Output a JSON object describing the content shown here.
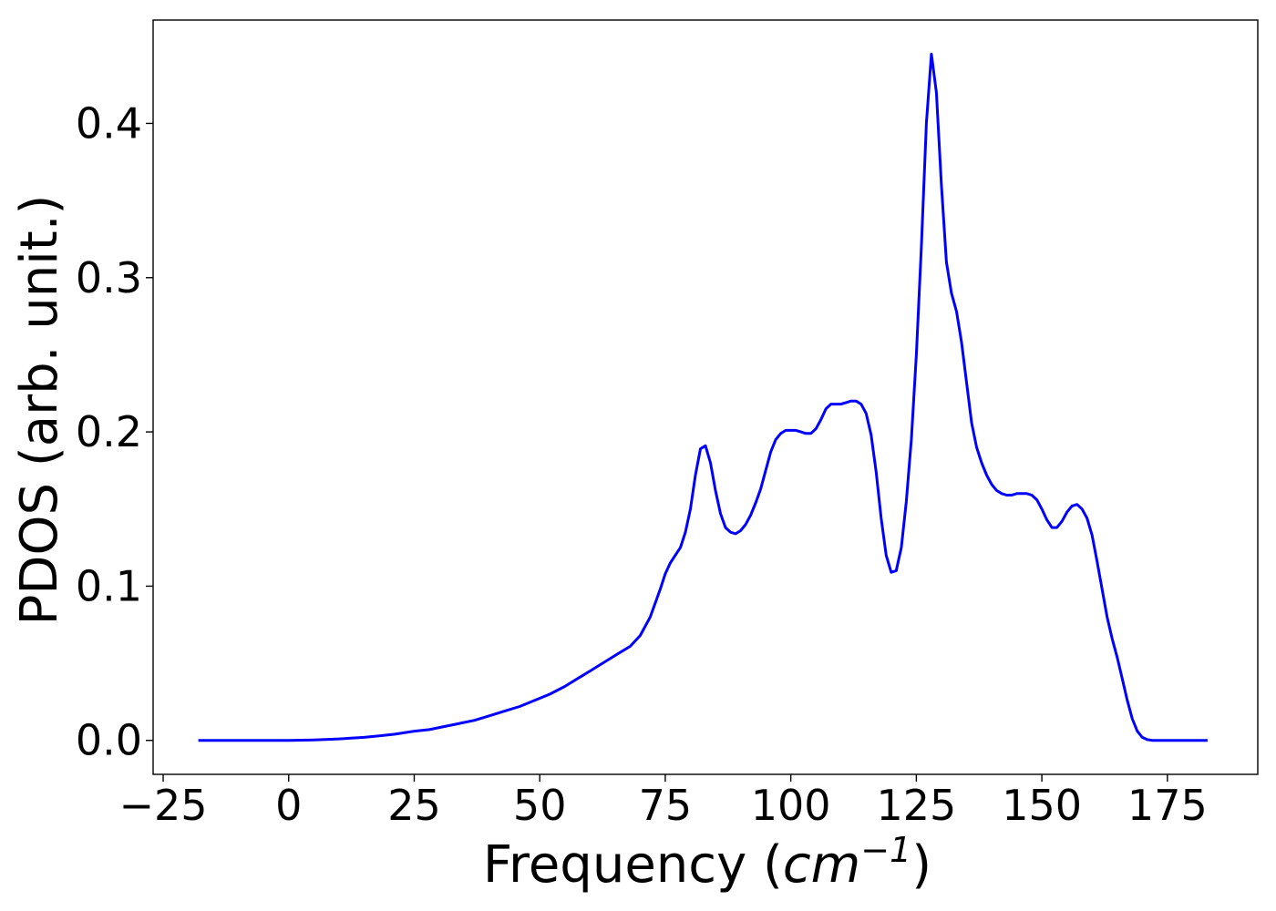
{
  "chart_data": {
    "type": "line",
    "title": "",
    "xlabel_prefix": "Frequency (",
    "xlabel_var": "cm",
    "xlabel_sup": "−1",
    "xlabel_suffix": ")",
    "ylabel": "PDOS (arb. unit.)",
    "xlim": [
      -27,
      193
    ],
    "ylim": [
      -0.022,
      0.467
    ],
    "xticks": [
      -25,
      0,
      25,
      50,
      75,
      100,
      125,
      150,
      175
    ],
    "xtick_labels": [
      "−25",
      "0",
      "25",
      "50",
      "75",
      "100",
      "125",
      "150",
      "175"
    ],
    "yticks": [
      0.0,
      0.1,
      0.2,
      0.3,
      0.4
    ],
    "ytick_labels": [
      "0.0",
      "0.1",
      "0.2",
      "0.3",
      "0.4"
    ],
    "grid": false,
    "line_color": "#0000ff",
    "series": [
      {
        "x": [
          -18,
          -10,
          0,
          5,
          10,
          15,
          18,
          21,
          25,
          28,
          31,
          34,
          37,
          40,
          43,
          46,
          49,
          52,
          55,
          58,
          60,
          63,
          66,
          68,
          70,
          72,
          74,
          75,
          76,
          77,
          78,
          79,
          80,
          81,
          82,
          83,
          84,
          85,
          86,
          87,
          88,
          89,
          90,
          91,
          92,
          93,
          94,
          95,
          96,
          97,
          98,
          99,
          100,
          101,
          102,
          103,
          104,
          105,
          106,
          107,
          108,
          109,
          110,
          111,
          112,
          113,
          114,
          115,
          116,
          117,
          118,
          119,
          120,
          121,
          122,
          123,
          124,
          125,
          126,
          127,
          128,
          129,
          130,
          131,
          132,
          133,
          134,
          135,
          136,
          137,
          138,
          139,
          140,
          141,
          142,
          143,
          144,
          145,
          146,
          147,
          148,
          149,
          150,
          151,
          152,
          153,
          154,
          155,
          156,
          157,
          158,
          159,
          160,
          161,
          162,
          163,
          164,
          165,
          166,
          167,
          168,
          169,
          170,
          171,
          172,
          175,
          180,
          183
        ],
        "y": [
          0.0,
          0.0,
          0.0,
          0.0003,
          0.001,
          0.002,
          0.003,
          0.004,
          0.006,
          0.007,
          0.009,
          0.011,
          0.013,
          0.016,
          0.019,
          0.022,
          0.026,
          0.03,
          0.035,
          0.041,
          0.045,
          0.051,
          0.057,
          0.061,
          0.068,
          0.08,
          0.098,
          0.108,
          0.115,
          0.12,
          0.125,
          0.135,
          0.15,
          0.172,
          0.189,
          0.191,
          0.18,
          0.162,
          0.147,
          0.138,
          0.135,
          0.134,
          0.136,
          0.14,
          0.146,
          0.154,
          0.163,
          0.175,
          0.187,
          0.195,
          0.199,
          0.201,
          0.201,
          0.201,
          0.2,
          0.199,
          0.199,
          0.202,
          0.208,
          0.215,
          0.218,
          0.218,
          0.218,
          0.219,
          0.22,
          0.22,
          0.218,
          0.212,
          0.198,
          0.174,
          0.144,
          0.12,
          0.109,
          0.11,
          0.125,
          0.155,
          0.195,
          0.25,
          0.32,
          0.4,
          0.445,
          0.42,
          0.36,
          0.31,
          0.29,
          0.278,
          0.258,
          0.232,
          0.206,
          0.19,
          0.18,
          0.172,
          0.166,
          0.162,
          0.16,
          0.159,
          0.159,
          0.16,
          0.16,
          0.16,
          0.159,
          0.156,
          0.15,
          0.143,
          0.138,
          0.138,
          0.142,
          0.148,
          0.152,
          0.153,
          0.15,
          0.144,
          0.133,
          0.116,
          0.098,
          0.08,
          0.066,
          0.054,
          0.04,
          0.026,
          0.014,
          0.006,
          0.002,
          0.0005,
          0.0,
          0.0,
          0.0,
          0.0
        ]
      }
    ]
  }
}
